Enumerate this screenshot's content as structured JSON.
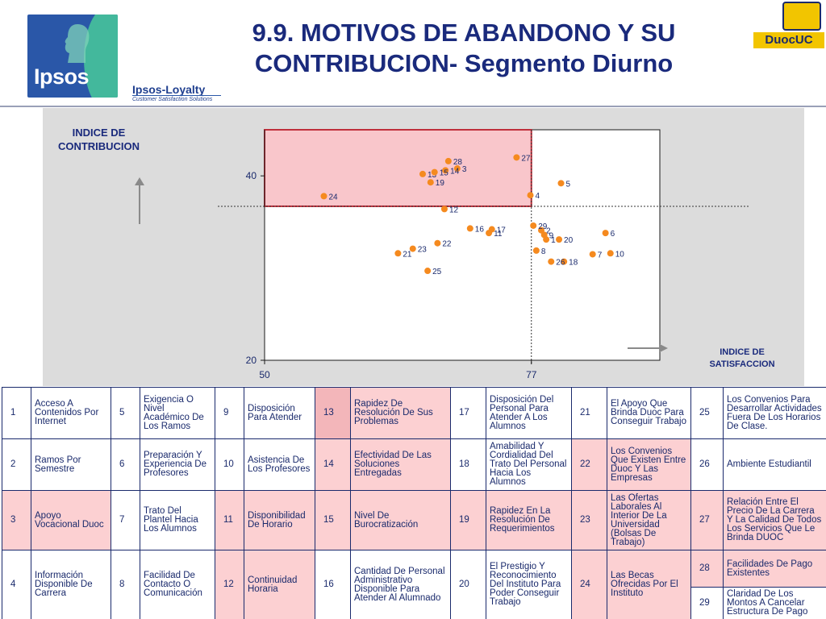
{
  "header": {
    "brand_logo": "Ipsos",
    "brand_sub": "Ipsos-Loyalty",
    "brand_tagline": "Customer Satisfaction Solutions",
    "title_line1": "9.9. MOTIVOS DE ABANDONO Y SU",
    "title_line2": "CONTRIBUCION- Segmento Diurno",
    "partner_logo": "DuocUC"
  },
  "chart_data": {
    "type": "scatter",
    "ylabel": "INDICE DE CONTRIBUCION",
    "xlabel": "INDICE DE SATISFACCION",
    "xlim": [
      50,
      90
    ],
    "ylim": [
      20,
      45
    ],
    "xticks": [
      50,
      77
    ],
    "yticks": [
      20,
      40
    ],
    "x_ref": 77,
    "y_ref": 36.7,
    "highlight_quadrant": "top-left",
    "points": [
      {
        "label": "1",
        "x": 78.5,
        "y": 33.1
      },
      {
        "label": "2",
        "x": 78.0,
        "y": 34.1
      },
      {
        "label": "3",
        "x": 69.5,
        "y": 40.8
      },
      {
        "label": "4",
        "x": 76.9,
        "y": 37.9
      },
      {
        "label": "5",
        "x": 80.0,
        "y": 39.2
      },
      {
        "label": "6",
        "x": 84.5,
        "y": 33.8
      },
      {
        "label": "7",
        "x": 83.2,
        "y": 31.5
      },
      {
        "label": "8",
        "x": 77.5,
        "y": 31.9
      },
      {
        "label": "9",
        "x": 78.3,
        "y": 33.6
      },
      {
        "label": "10",
        "x": 85.0,
        "y": 31.6
      },
      {
        "label": "11",
        "x": 72.7,
        "y": 33.8
      },
      {
        "label": "12",
        "x": 68.2,
        "y": 36.4
      },
      {
        "label": "13",
        "x": 66.0,
        "y": 40.2
      },
      {
        "label": "14",
        "x": 68.3,
        "y": 40.6
      },
      {
        "label": "15",
        "x": 67.2,
        "y": 40.4
      },
      {
        "label": "16",
        "x": 70.8,
        "y": 34.3
      },
      {
        "label": "17",
        "x": 73.0,
        "y": 34.2
      },
      {
        "label": "18",
        "x": 80.3,
        "y": 30.7
      },
      {
        "label": "19",
        "x": 66.8,
        "y": 39.3
      },
      {
        "label": "20",
        "x": 79.8,
        "y": 33.1
      },
      {
        "label": "21",
        "x": 63.5,
        "y": 31.6
      },
      {
        "label": "22",
        "x": 67.5,
        "y": 32.7
      },
      {
        "label": "23",
        "x": 65.0,
        "y": 32.1
      },
      {
        "label": "24",
        "x": 56.0,
        "y": 37.8
      },
      {
        "label": "25",
        "x": 66.5,
        "y": 29.7
      },
      {
        "label": "26",
        "x": 79.0,
        "y": 30.7
      },
      {
        "label": "27",
        "x": 75.5,
        "y": 42.0
      },
      {
        "label": "28",
        "x": 68.6,
        "y": 41.6
      },
      {
        "label": "29",
        "x": 77.2,
        "y": 34.6
      }
    ]
  },
  "legend": [
    {
      "num": "1",
      "text": "Acceso A Contenidos Por Internet"
    },
    {
      "num": "2",
      "text": "Ramos Por Semestre"
    },
    {
      "num": "3",
      "text": "Apoyo Vocacional Duoc"
    },
    {
      "num": "4",
      "text": "Información Disponible De Carrera"
    },
    {
      "num": "5",
      "text": "Exigencia O Nivel Académico De Los Ramos"
    },
    {
      "num": "6",
      "text": "Preparación Y Experiencia De Profesores"
    },
    {
      "num": "7",
      "text": "Trato Del Plantel Hacia Los Alumnos"
    },
    {
      "num": "8",
      "text": "Facilidad De Contacto O Comunicación"
    },
    {
      "num": "9",
      "text": "Disposición Para Atender"
    },
    {
      "num": "10",
      "text": "Asistencia De Los Profesores"
    },
    {
      "num": "11",
      "text": "Disponibilidad De Horario"
    },
    {
      "num": "12",
      "text": "Continuidad Horaria"
    },
    {
      "num": "13",
      "text": "Rapidez De Resolución De Sus Problemas"
    },
    {
      "num": "14",
      "text": "Efectividad De Las Soluciones Entregadas"
    },
    {
      "num": "15",
      "text": "Nivel De Burocratización"
    },
    {
      "num": "16",
      "text": "Cantidad De Personal Administrativo Disponible Para Atender Al Alumnado"
    },
    {
      "num": "17",
      "text": "Disposición Del Personal Para Atender A Los Alumnos"
    },
    {
      "num": "18",
      "text": "Amabilidad Y Cordialidad Del Trato Del Personal Hacia Los Alumnos"
    },
    {
      "num": "19",
      "text": "Rapidez En La Resolución De Requerimientos"
    },
    {
      "num": "20",
      "text": "El Prestigio Y Reconocimiento Del Instituto Para Poder Conseguir Trabajo"
    },
    {
      "num": "21",
      "text": "El Apoyo Que Brinda Duoc Para Conseguir Trabajo"
    },
    {
      "num": "22",
      "text": "Los Convenios Que Existen Entre Duoc Y Las Empresas"
    },
    {
      "num": "23",
      "text": "Las Ofertas Laborales Al Interior De La Universidad (Bolsas De Trabajo)"
    },
    {
      "num": "24",
      "text": "Las Becas Ofrecidas Por El Instituto"
    },
    {
      "num": "25",
      "text": "Los Convenios Para Desarrollar Actividades Fuera De Los Horarios De Clase."
    },
    {
      "num": "26",
      "text": "Ambiente Estudiantil"
    },
    {
      "num": "27",
      "text": "Relación Entre El Precio De La Carrera Y La Calidad De Todos Los Servicios Que Le Brinda DUOC"
    },
    {
      "num": "28",
      "text": "Facilidades De Pago Existentes"
    },
    {
      "num": "29",
      "text": "Claridad De Los Montos A Cancelar Estructura De Pago"
    }
  ],
  "colors": {
    "point": "#f58a1f",
    "highlight_fill": "#f9c6cb",
    "highlight_border": "#c0303c",
    "text": "#1a2a6c"
  }
}
